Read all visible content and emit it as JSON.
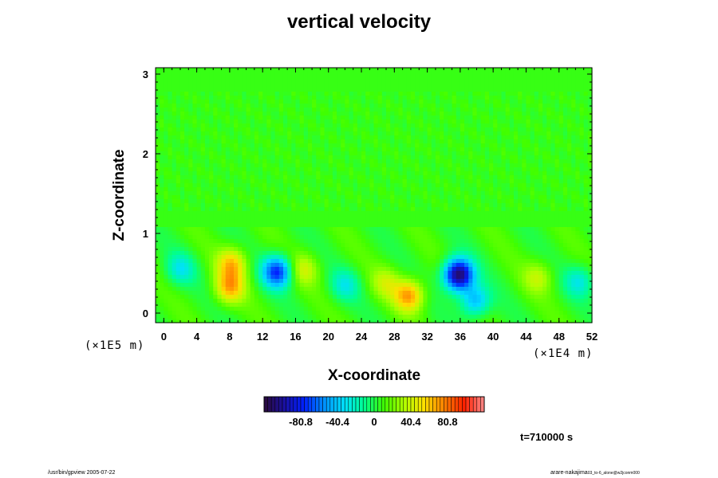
{
  "title": "vertical velocity",
  "time_label": "t=710000 s",
  "footer_left": "/usr/bin/gpview 2005-07-22",
  "footer_right": "arare-nakajima",
  "footer_right_sub": "03_to-6_alone@w2jconm000",
  "colors": {
    "frame": "#000000",
    "colormap": [
      "#2a0a3a",
      "#1a10a0",
      "#0020ff",
      "#0090ff",
      "#00e0ff",
      "#00ff90",
      "#40ff00",
      "#b0ff00",
      "#ffe000",
      "#ff8000",
      "#ff2000",
      "#ff8a8a"
    ]
  },
  "chart_data": {
    "type": "heatmap",
    "title": "vertical velocity",
    "xlabel": "X-coordinate",
    "ylabel": "Z-coordinate",
    "x_scale_note": "(×1E4 m)",
    "y_scale_note": "(×1E5 m)",
    "xlim": [
      -1,
      52
    ],
    "ylim": [
      -0.12,
      3.08
    ],
    "x_ticks": [
      "0",
      "4",
      "8",
      "12",
      "16",
      "20",
      "24",
      "28",
      "32",
      "36",
      "40",
      "44",
      "48",
      "52"
    ],
    "y_ticks": [
      "0",
      "1",
      "2",
      "3"
    ],
    "colorbar": {
      "range": [
        -121.2,
        121.2
      ],
      "tick_values": [
        -80.8,
        -40.4,
        0,
        40.4,
        80.8
      ],
      "tick_labels": [
        "-80.8",
        "-40.4",
        "0",
        "40.4",
        "80.8"
      ]
    },
    "background_value": 8,
    "features": [
      {
        "x": 8.3,
        "z": 0.62,
        "value": 58,
        "kind": "updraft"
      },
      {
        "x": 8.0,
        "z": 0.32,
        "value": 62,
        "kind": "updraft"
      },
      {
        "x": 13.8,
        "z": 0.52,
        "value": -75,
        "kind": "downdraft"
      },
      {
        "x": 17.0,
        "z": 0.55,
        "value": 38,
        "kind": "updraft"
      },
      {
        "x": 29.8,
        "z": 0.22,
        "value": 70,
        "kind": "updraft"
      },
      {
        "x": 27.0,
        "z": 0.38,
        "value": 35,
        "kind": "updraft"
      },
      {
        "x": 35.8,
        "z": 0.48,
        "value": -115,
        "kind": "downdraft"
      },
      {
        "x": 37.8,
        "z": 0.15,
        "value": -45,
        "kind": "downdraft"
      },
      {
        "x": 45.5,
        "z": 0.45,
        "value": 35,
        "kind": "updraft"
      },
      {
        "x": 50.5,
        "z": 0.4,
        "value": -25,
        "kind": "downdraft"
      },
      {
        "x": 2.0,
        "z": 0.55,
        "value": -25,
        "kind": "downdraft"
      },
      {
        "x": 22.0,
        "z": 0.35,
        "value": -22,
        "kind": "downdraft"
      }
    ]
  }
}
